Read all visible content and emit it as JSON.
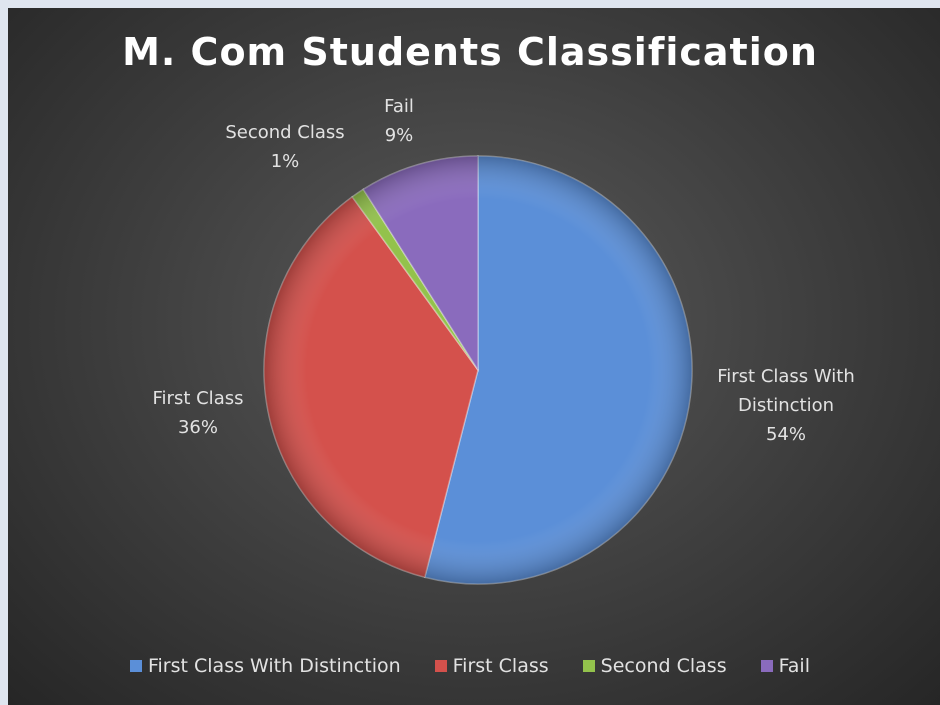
{
  "chart_data": {
    "type": "pie",
    "title": "M. Com Students Classification",
    "categories": [
      "First Class With Distinction",
      "First Class",
      "Second Class",
      "Fail"
    ],
    "values": [
      54,
      36,
      1,
      9
    ],
    "value_labels": [
      "54%",
      "36%",
      "1%",
      "9%"
    ],
    "colors": [
      "#5b8fd8",
      "#d4514c",
      "#93c24c",
      "#8a6bbd"
    ],
    "legend": "bottom"
  }
}
